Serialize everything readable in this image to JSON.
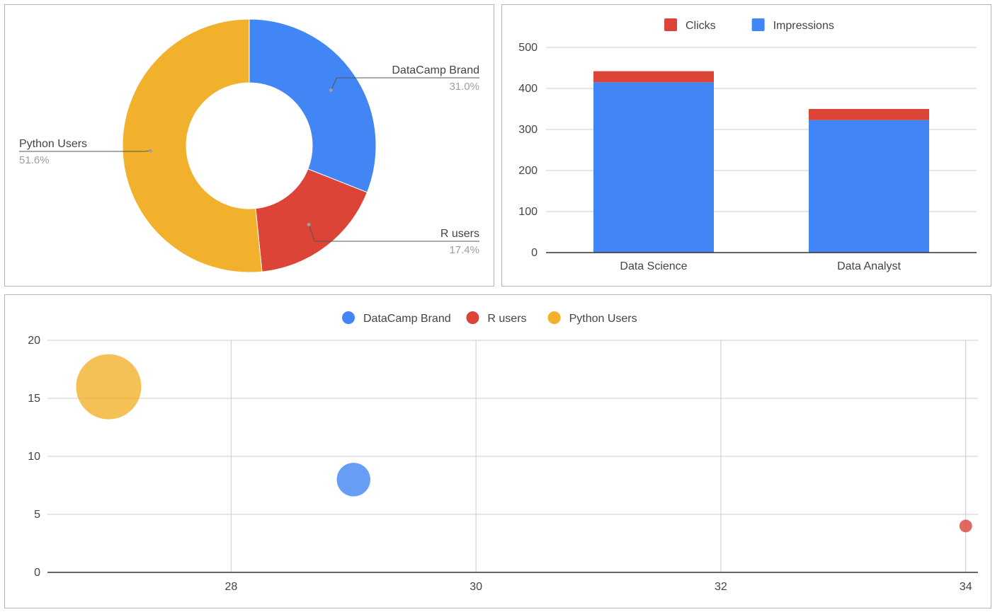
{
  "colors": {
    "blue": "#4285f4",
    "red": "#db4437",
    "yellow": "#f2b12c",
    "text": "#444444",
    "muted": "#9e9e9e",
    "grid": "#cccccc",
    "axis": "#333333"
  },
  "chart_data": [
    {
      "type": "pie",
      "style": "donut",
      "title": "",
      "slices": [
        {
          "label": "DataCamp Brand",
          "percent_label": "31.0%",
          "value": 31.0
        },
        {
          "label": "R users",
          "percent_label": "17.4%",
          "value": 17.4
        },
        {
          "label": "Python Users",
          "percent_label": "51.6%",
          "value": 51.6
        }
      ]
    },
    {
      "type": "bar",
      "stacked": true,
      "title": "",
      "categories": [
        "Data Science",
        "Data Analyst"
      ],
      "series": [
        {
          "name": "Clicks",
          "values": [
            27,
            27
          ]
        },
        {
          "name": "Impressions",
          "values": [
            415,
            323
          ]
        }
      ],
      "legend_order": [
        "Clicks",
        "Impressions"
      ],
      "legend_position": "top",
      "ylim": [
        0,
        500
      ],
      "yticks": [
        0,
        100,
        200,
        300,
        400,
        500
      ],
      "xlabel": "",
      "ylabel": ""
    },
    {
      "type": "scatter",
      "style": "bubble",
      "title": "",
      "series": [
        {
          "name": "DataCamp Brand",
          "x": 29,
          "y": 8,
          "size": 31.0
        },
        {
          "name": "R users",
          "x": 34,
          "y": 4,
          "size": 17.4
        },
        {
          "name": "Python Users",
          "x": 27,
          "y": 16,
          "size": 51.6
        }
      ],
      "legend_position": "top",
      "xlim": [
        26.5,
        34.1
      ],
      "ylim": [
        0,
        20
      ],
      "xticks": [
        28,
        30,
        32,
        34
      ],
      "yticks": [
        0,
        5,
        10,
        15,
        20
      ],
      "xlabel": "",
      "ylabel": ""
    }
  ]
}
